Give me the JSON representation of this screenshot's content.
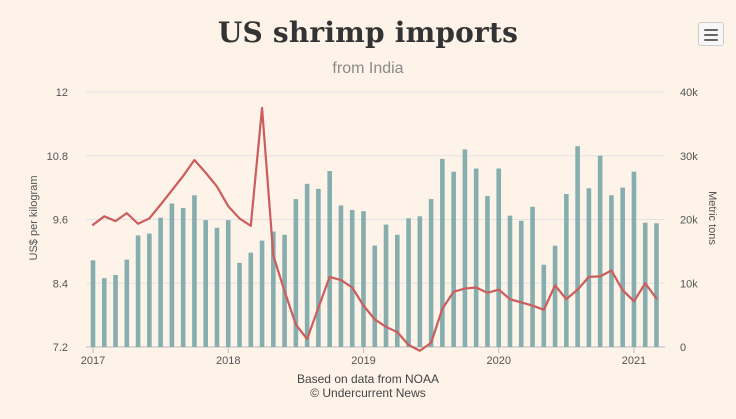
{
  "title": "US shrimp imports",
  "subtitle": "from India",
  "credits": {
    "line1": "Based on data from NOAA",
    "line2": "© Undercurrent News"
  },
  "colors": {
    "background": "#fdf3e8",
    "bars": "#86aeae",
    "line": "#cd5c5c",
    "grid": "#e3e3e3"
  },
  "chart_data": {
    "type": "bar+line",
    "x_tick_labels": [
      "2017",
      "2018",
      "2019",
      "2020",
      "2021"
    ],
    "left_axis": {
      "title": "US$ per kilogram",
      "range": [
        7.2,
        12
      ],
      "tick_labels": [
        "7.2",
        "8.4",
        "9.6",
        "10.8",
        "12"
      ]
    },
    "right_axis": {
      "title": "Metric tons",
      "range": [
        0,
        40000
      ],
      "tick_labels": [
        "0",
        "10k",
        "20k",
        "30k",
        "40k"
      ]
    },
    "grid": true,
    "legend": "none",
    "months": [
      "2017-01",
      "2017-02",
      "2017-03",
      "2017-04",
      "2017-05",
      "2017-06",
      "2017-07",
      "2017-08",
      "2017-09",
      "2017-10",
      "2017-11",
      "2017-12",
      "2018-01",
      "2018-02",
      "2018-03",
      "2018-04",
      "2018-05",
      "2018-06",
      "2018-07",
      "2018-08",
      "2018-09",
      "2018-10",
      "2018-11",
      "2018-12",
      "2019-01",
      "2019-02",
      "2019-03",
      "2019-04",
      "2019-05",
      "2019-06",
      "2019-07",
      "2019-08",
      "2019-09",
      "2019-10",
      "2019-11",
      "2019-12",
      "2020-01",
      "2020-02",
      "2020-03",
      "2020-04",
      "2020-05",
      "2020-06",
      "2020-07",
      "2020-08",
      "2020-09",
      "2020-10",
      "2020-11",
      "2020-12",
      "2021-01",
      "2021-02",
      "2021-03"
    ],
    "series": [
      {
        "type": "bar",
        "axis": "right",
        "values": [
          13600,
          10800,
          11300,
          13700,
          17500,
          17800,
          20300,
          22500,
          21800,
          23800,
          19900,
          18700,
          19900,
          13200,
          14800,
          16700,
          18100,
          17600,
          23200,
          25600,
          24800,
          27600,
          22200,
          21500,
          21300,
          15900,
          19200,
          17600,
          20200,
          20500,
          23200,
          29500,
          27500,
          31000,
          28000,
          23700,
          28000,
          20600,
          19800,
          22000,
          12900,
          15900,
          24000,
          31500,
          24900,
          30000,
          23800,
          25000,
          27500,
          19500,
          19400
        ]
      },
      {
        "type": "line",
        "axis": "left",
        "values": [
          9.5,
          9.66,
          9.57,
          9.72,
          9.52,
          9.62,
          9.88,
          10.15,
          10.42,
          10.72,
          10.48,
          10.22,
          9.85,
          9.62,
          9.48,
          11.7,
          8.92,
          8.25,
          7.62,
          7.35,
          7.94,
          8.52,
          8.46,
          8.32,
          7.98,
          7.72,
          7.58,
          7.48,
          7.24,
          7.13,
          7.28,
          7.92,
          8.24,
          8.3,
          8.32,
          8.22,
          8.28,
          8.1,
          8.04,
          7.98,
          7.9,
          8.36,
          8.1,
          8.28,
          8.52,
          8.53,
          8.64,
          8.27,
          8.06,
          8.4,
          8.11
        ]
      }
    ]
  }
}
